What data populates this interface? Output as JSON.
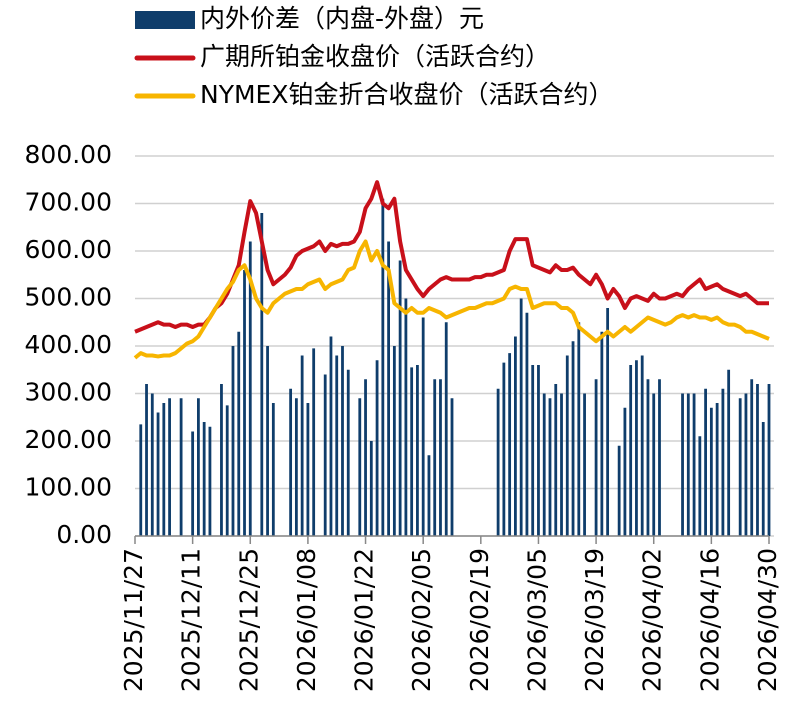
{
  "chart_data": {
    "type": "bar",
    "categories": [
      "2025/11/27",
      null,
      null,
      null,
      null,
      null,
      null,
      null,
      null,
      null,
      "2025/12/11",
      null,
      null,
      null,
      null,
      null,
      null,
      null,
      null,
      null,
      "2025/12/25",
      null,
      null,
      null,
      null,
      null,
      null,
      null,
      null,
      null,
      "2026/01/08",
      null,
      null,
      null,
      null,
      null,
      null,
      null,
      null,
      null,
      "2026/01/22",
      null,
      null,
      null,
      null,
      null,
      null,
      null,
      null,
      null,
      "2026/02/05",
      null,
      null,
      null,
      null,
      null,
      null,
      null,
      null,
      null,
      "2026/02/19",
      null,
      null,
      null,
      null,
      null,
      null,
      null,
      null,
      null,
      "2026/03/05",
      null,
      null,
      null,
      null,
      null,
      null,
      null,
      null,
      null,
      "2026/03/19",
      null,
      null,
      null,
      null,
      null,
      null,
      null,
      null,
      null,
      "2026/04/02",
      null,
      null,
      null,
      null,
      null,
      null,
      null,
      null,
      null,
      "2026/04/16",
      null,
      null,
      null,
      null,
      null,
      null,
      null,
      null,
      null,
      "2026/04/30"
    ],
    "series": [
      {
        "name": "内外价差（内盘-外盘）元",
        "type": "bar",
        "color": "#0f3d6b",
        "values": [
          null,
          235,
          320,
          300,
          260,
          280,
          290,
          null,
          290,
          null,
          220,
          290,
          240,
          230,
          null,
          320,
          275,
          400,
          430,
          560,
          620,
          null,
          680,
          400,
          280,
          null,
          null,
          310,
          290,
          380,
          280,
          395,
          null,
          340,
          420,
          380,
          400,
          350,
          null,
          290,
          330,
          200,
          370,
          710,
          620,
          400,
          580,
          500,
          355,
          360,
          460,
          170,
          330,
          330,
          450,
          290,
          null,
          null,
          null,
          null,
          null,
          null,
          null,
          310,
          365,
          385,
          420,
          500,
          470,
          360,
          360,
          300,
          290,
          320,
          300,
          380,
          410,
          450,
          300,
          null,
          330,
          430,
          480,
          null,
          190,
          270,
          360,
          370,
          380,
          330,
          300,
          330,
          null,
          null,
          null,
          300,
          300,
          300,
          210,
          310,
          270,
          280,
          310,
          350,
          null,
          290,
          300,
          330,
          320,
          240,
          320
        ]
      },
      {
        "name": "广期所铂金收盘价（活跃合约）",
        "type": "line",
        "color": "#c8101a",
        "values": [
          430,
          435,
          440,
          445,
          450,
          445,
          445,
          440,
          445,
          445,
          440,
          445,
          445,
          460,
          480,
          490,
          510,
          540,
          570,
          640,
          705,
          680,
          620,
          560,
          530,
          540,
          550,
          565,
          590,
          600,
          605,
          610,
          620,
          600,
          615,
          610,
          615,
          615,
          620,
          640,
          690,
          710,
          745,
          700,
          690,
          710,
          620,
          560,
          540,
          520,
          505,
          520,
          530,
          540,
          545,
          540,
          540,
          540,
          540,
          545,
          545,
          550,
          550,
          555,
          560,
          600,
          625,
          625,
          625,
          570,
          565,
          560,
          555,
          570,
          560,
          560,
          565,
          550,
          540,
          530,
          550,
          530,
          500,
          520,
          505,
          480,
          500,
          505,
          500,
          495,
          510,
          500,
          500,
          505,
          510,
          505,
          520,
          530,
          540,
          520,
          525,
          530,
          520,
          515,
          510,
          505,
          510,
          500,
          490,
          490,
          490
        ]
      },
      {
        "name": "NYMEX铂金折合收盘价（活跃合约）",
        "type": "line",
        "color": "#f7b500",
        "values": [
          375,
          385,
          380,
          380,
          378,
          380,
          380,
          385,
          395,
          405,
          410,
          420,
          440,
          460,
          480,
          500,
          520,
          535,
          560,
          570,
          540,
          500,
          480,
          470,
          490,
          500,
          510,
          515,
          520,
          520,
          530,
          535,
          540,
          520,
          530,
          535,
          540,
          560,
          565,
          600,
          620,
          580,
          600,
          570,
          560,
          490,
          480,
          470,
          480,
          470,
          470,
          480,
          475,
          470,
          460,
          465,
          470,
          475,
          480,
          480,
          485,
          490,
          490,
          495,
          500,
          520,
          525,
          520,
          520,
          480,
          485,
          490,
          490,
          490,
          480,
          480,
          470,
          440,
          430,
          420,
          410,
          420,
          430,
          420,
          430,
          440,
          430,
          440,
          450,
          460,
          455,
          450,
          445,
          450,
          460,
          465,
          460,
          465,
          460,
          460,
          455,
          460,
          450,
          445,
          445,
          440,
          430,
          430,
          425,
          420,
          415
        ]
      }
    ],
    "ylim": [
      0,
      800
    ],
    "yticks": [
      {
        "value": 0,
        "label": "0.00"
      },
      {
        "value": 100,
        "label": "100.00"
      },
      {
        "value": 200,
        "label": "200.00"
      },
      {
        "value": 300,
        "label": "300.00"
      },
      {
        "value": 400,
        "label": "400.00"
      },
      {
        "value": 500,
        "label": "500.00"
      },
      {
        "value": 600,
        "label": "600.00"
      },
      {
        "value": 700,
        "label": "700.00"
      },
      {
        "value": 800,
        "label": "800.00"
      }
    ],
    "grid": true,
    "legend": "top-left"
  }
}
